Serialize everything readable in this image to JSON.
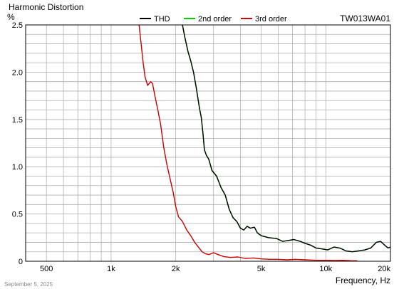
{
  "chart_data": {
    "type": "line",
    "title": "Harmonic Distortion",
    "ylabel": "%",
    "xlabel": "Frequency, Hz",
    "model": "TW013WA01",
    "date": "September 5, 2025",
    "x_scale": "log",
    "xlim": [
      400,
      20000
    ],
    "ylim": [
      0,
      2.5
    ],
    "grid": true,
    "legend_position": "top-center",
    "x_ticks": [
      {
        "value": 500,
        "label": "500"
      },
      {
        "value": 1000,
        "label": "1k"
      },
      {
        "value": 2000,
        "label": "2k"
      },
      {
        "value": 5000,
        "label": "5k"
      },
      {
        "value": 10000,
        "label": "10k"
      },
      {
        "value": 20000,
        "label": "20k"
      }
    ],
    "y_ticks": [
      {
        "value": 0,
        "label": "0"
      },
      {
        "value": 0.5,
        "label": "0.5"
      },
      {
        "value": 1.0,
        "label": "1.0"
      },
      {
        "value": 1.5,
        "label": "1.5"
      },
      {
        "value": 2.0,
        "label": "2.0"
      },
      {
        "value": 2.5,
        "label": "2.5"
      }
    ],
    "series": [
      {
        "name": "THD",
        "color": "#000000",
        "points": [
          [
            2150,
            2.5
          ],
          [
            2200,
            2.38
          ],
          [
            2280,
            2.22
          ],
          [
            2350,
            2.12
          ],
          [
            2420,
            2.0
          ],
          [
            2500,
            1.82
          ],
          [
            2570,
            1.64
          ],
          [
            2630,
            1.52
          ],
          [
            2680,
            1.35
          ],
          [
            2720,
            1.18
          ],
          [
            2780,
            1.12
          ],
          [
            2850,
            1.08
          ],
          [
            2950,
            0.96
          ],
          [
            3100,
            0.9
          ],
          [
            3250,
            0.78
          ],
          [
            3400,
            0.7
          ],
          [
            3550,
            0.55
          ],
          [
            3700,
            0.46
          ],
          [
            3850,
            0.42
          ],
          [
            4000,
            0.35
          ],
          [
            4150,
            0.33
          ],
          [
            4300,
            0.37
          ],
          [
            4450,
            0.35
          ],
          [
            4650,
            0.36
          ],
          [
            4800,
            0.3
          ],
          [
            5000,
            0.27
          ],
          [
            5400,
            0.25
          ],
          [
            5900,
            0.24
          ],
          [
            6300,
            0.21
          ],
          [
            6700,
            0.22
          ],
          [
            7100,
            0.23
          ],
          [
            7600,
            0.21
          ],
          [
            8000,
            0.19
          ],
          [
            8500,
            0.17
          ],
          [
            9000,
            0.14
          ],
          [
            9600,
            0.13
          ],
          [
            10200,
            0.12
          ],
          [
            10900,
            0.15
          ],
          [
            11600,
            0.14
          ],
          [
            12400,
            0.11
          ],
          [
            13300,
            0.1
          ],
          [
            14200,
            0.11
          ],
          [
            15200,
            0.12
          ],
          [
            16200,
            0.14
          ],
          [
            17200,
            0.2
          ],
          [
            18000,
            0.21
          ],
          [
            18800,
            0.17
          ],
          [
            19500,
            0.14
          ],
          [
            20000,
            0.15
          ]
        ]
      },
      {
        "name": "2nd order",
        "color": "#00cc00",
        "points": [
          [
            2150,
            2.5
          ],
          [
            2200,
            2.38
          ],
          [
            2280,
            2.22
          ],
          [
            2350,
            2.12
          ],
          [
            2420,
            2.0
          ],
          [
            2500,
            1.82
          ],
          [
            2570,
            1.64
          ],
          [
            2630,
            1.52
          ],
          [
            2680,
            1.35
          ],
          [
            2720,
            1.18
          ],
          [
            2780,
            1.12
          ],
          [
            2850,
            1.08
          ],
          [
            2950,
            0.96
          ],
          [
            3100,
            0.9
          ],
          [
            3250,
            0.78
          ],
          [
            3400,
            0.7
          ],
          [
            3550,
            0.55
          ],
          [
            3700,
            0.46
          ],
          [
            3850,
            0.42
          ],
          [
            4000,
            0.35
          ],
          [
            4150,
            0.33
          ],
          [
            4300,
            0.37
          ],
          [
            4450,
            0.35
          ],
          [
            4650,
            0.36
          ],
          [
            4800,
            0.3
          ],
          [
            5000,
            0.27
          ],
          [
            5400,
            0.25
          ],
          [
            5900,
            0.24
          ],
          [
            6300,
            0.21
          ],
          [
            6700,
            0.22
          ],
          [
            7100,
            0.23
          ],
          [
            7600,
            0.21
          ],
          [
            8000,
            0.19
          ],
          [
            8500,
            0.17
          ],
          [
            9000,
            0.14
          ],
          [
            9600,
            0.13
          ],
          [
            10200,
            0.12
          ],
          [
            10900,
            0.15
          ],
          [
            11600,
            0.14
          ],
          [
            12400,
            0.11
          ],
          [
            13300,
            0.1
          ],
          [
            14200,
            0.11
          ],
          [
            15200,
            0.12
          ],
          [
            16200,
            0.14
          ],
          [
            17200,
            0.2
          ],
          [
            18000,
            0.21
          ],
          [
            18800,
            0.17
          ],
          [
            19500,
            0.14
          ],
          [
            20000,
            0.15
          ]
        ]
      },
      {
        "name": "3rd order",
        "color": "#cc0000",
        "points": [
          [
            1350,
            2.5
          ],
          [
            1380,
            2.3
          ],
          [
            1410,
            2.1
          ],
          [
            1440,
            1.95
          ],
          [
            1480,
            1.86
          ],
          [
            1530,
            1.9
          ],
          [
            1560,
            1.88
          ],
          [
            1600,
            1.75
          ],
          [
            1650,
            1.6
          ],
          [
            1700,
            1.45
          ],
          [
            1760,
            1.2
          ],
          [
            1820,
            1.02
          ],
          [
            1880,
            0.88
          ],
          [
            1950,
            0.72
          ],
          [
            2000,
            0.58
          ],
          [
            2060,
            0.47
          ],
          [
            2150,
            0.42
          ],
          [
            2250,
            0.33
          ],
          [
            2350,
            0.27
          ],
          [
            2450,
            0.2
          ],
          [
            2550,
            0.15
          ],
          [
            2650,
            0.1
          ],
          [
            2750,
            0.08
          ],
          [
            2850,
            0.07
          ],
          [
            3000,
            0.09
          ],
          [
            3150,
            0.07
          ],
          [
            3350,
            0.05
          ],
          [
            3600,
            0.04
          ],
          [
            3900,
            0.045
          ],
          [
            4200,
            0.03
          ],
          [
            4600,
            0.035
          ],
          [
            5000,
            0.025
          ],
          [
            5500,
            0.02
          ],
          [
            6000,
            0.02
          ],
          [
            6600,
            0.015
          ],
          [
            7200,
            0.02
          ],
          [
            8000,
            0.015
          ],
          [
            9000,
            0.01
          ],
          [
            10000,
            0.01
          ],
          [
            11000,
            0.008
          ],
          [
            12000,
            0.01
          ],
          [
            13000,
            0.006
          ],
          [
            14000,
            0.005
          ]
        ]
      }
    ]
  }
}
